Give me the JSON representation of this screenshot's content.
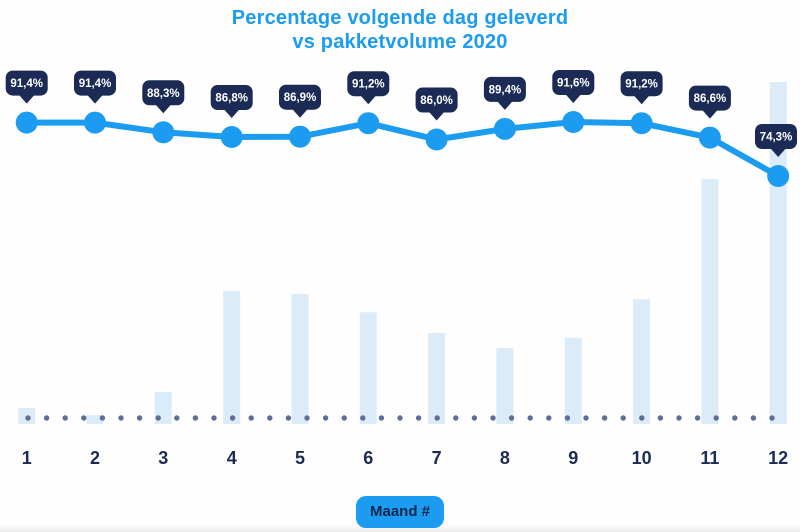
{
  "header": {
    "title_line1": "Percentage volgende dag geleverd",
    "title_line2": "vs pakketvolume 2020"
  },
  "xaxis_badge": "Maand #",
  "colors": {
    "accent_blue": "#1b9cf0",
    "navy": "#1b2b55",
    "bar_fill": "#dcebf8",
    "dot_gray_blue": "#5d6f96",
    "tooltip_text": "#ffffff",
    "background": "#fefefe"
  },
  "chart_data": {
    "type": "combo (line over bar)",
    "title": "Percentage volgende dag geleverd vs pakketvolume 2020",
    "categories": [
      "1",
      "2",
      "3",
      "4",
      "5",
      "6",
      "7",
      "8",
      "9",
      "10",
      "11",
      "12"
    ],
    "xlabel": "Maand #",
    "legend_position": "none",
    "grid": "off",
    "axes_note": "no y-axis shown; percentage shown as callout labels above each line marker; dotted baseline along x-axis",
    "series": [
      {
        "name": "Percentage volgende dag geleverd",
        "type": "line",
        "unit": "%",
        "values": [
          91.4,
          91.4,
          88.3,
          86.8,
          86.9,
          91.2,
          86.0,
          89.4,
          91.6,
          91.2,
          86.6,
          74.3
        ],
        "labels": [
          "91,4%",
          "91,4%",
          "88,3%",
          "86,8%",
          "86,9%",
          "91,2%",
          "86,0%",
          "89,4%",
          "91,6%",
          "91,2%",
          "86,6%",
          "74,3%"
        ]
      },
      {
        "name": "Pakketvolume 2020",
        "type": "bar",
        "unit": "relative index (month 12 = 100)",
        "values": [
          4.7,
          2.6,
          9.4,
          38.9,
          38.0,
          32.7,
          26.6,
          22.2,
          25.2,
          36.5,
          71.6,
          100
        ]
      }
    ]
  }
}
